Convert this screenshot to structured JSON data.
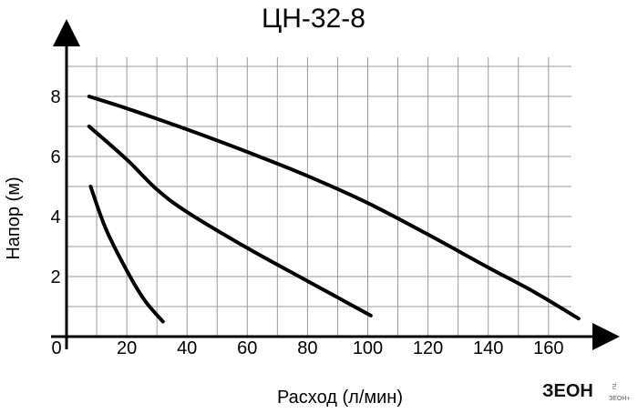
{
  "chart_data": {
    "type": "line",
    "title": "ЦН-32-8",
    "xlabel": "Расход (л/мин)",
    "ylabel": "Напор (м)",
    "xlim": [
      0,
      170
    ],
    "ylim": [
      0,
      9
    ],
    "x_ticks": [
      "20",
      "40",
      "60",
      "80",
      "100",
      "120",
      "140",
      "160"
    ],
    "y_ticks": [
      "2",
      "4",
      "6",
      "8"
    ],
    "origin_label": "0",
    "grid": true,
    "series": [
      {
        "x": [
          7.5,
          20,
          40,
          60,
          80,
          100,
          120,
          140,
          155,
          170
        ],
        "y": [
          8.0,
          7.6,
          6.9,
          6.15,
          5.35,
          4.45,
          3.4,
          2.3,
          1.5,
          0.6
        ]
      },
      {
        "x": [
          7.5,
          20,
          30,
          40,
          60,
          80,
          101
        ],
        "y": [
          7.0,
          5.9,
          4.9,
          4.15,
          2.95,
          1.85,
          0.7
        ]
      },
      {
        "x": [
          8,
          13,
          20,
          26,
          32
        ],
        "y": [
          5.0,
          3.6,
          2.2,
          1.2,
          0.5
        ]
      }
    ]
  },
  "logo": {
    "text": "ЗЕОН",
    "sub": "ru.",
    "tag": "ЗЕОН+"
  }
}
